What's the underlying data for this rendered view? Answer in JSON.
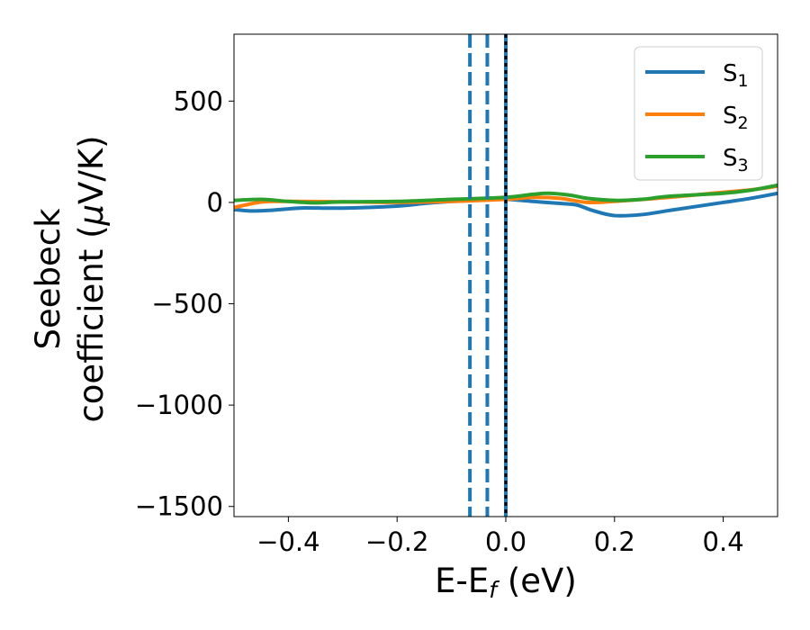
{
  "chart_data": {
    "type": "line",
    "xlabel": {
      "main": "E-E",
      "sub": "f",
      "tail": " (eV)"
    },
    "ylabel": {
      "line1": "Seebeck",
      "line2": "coefficient  (",
      "mu": "μ",
      "line2_tail": "V/K)"
    },
    "xlim": [
      -0.5,
      0.5
    ],
    "ylim": [
      -1550,
      830
    ],
    "x_ticks": [
      -0.4,
      -0.2,
      0.0,
      0.2,
      0.4
    ],
    "x_tick_labels": [
      "−0.4",
      "−0.2",
      "0.0",
      "0.2",
      "0.4"
    ],
    "y_ticks": [
      500,
      0,
      -500,
      -1000,
      -1500
    ],
    "y_tick_labels": [
      "500",
      "0",
      "−500",
      "−1000",
      "−1500"
    ],
    "grid": false,
    "legend_position": "top-right",
    "series": [
      {
        "name": "S",
        "sub": "1",
        "color": "#1f77b4",
        "x": [
          -0.5,
          -0.47,
          -0.44,
          -0.4,
          -0.37,
          -0.3,
          -0.2,
          -0.15,
          -0.1,
          -0.05,
          0.0,
          0.05,
          0.1,
          0.13,
          0.16,
          0.2,
          0.25,
          0.3,
          0.35,
          0.4,
          0.45,
          0.5
        ],
        "y": [
          -35,
          -42,
          -40,
          -32,
          -27,
          -28,
          -18,
          -5,
          5,
          12,
          15,
          5,
          -5,
          -12,
          -40,
          -65,
          -60,
          -40,
          -20,
          0,
          20,
          45
        ]
      },
      {
        "name": "S",
        "sub": "2",
        "color": "#ff7f0e",
        "x": [
          -0.5,
          -0.45,
          -0.4,
          -0.3,
          -0.2,
          -0.1,
          0.0,
          0.05,
          0.1,
          0.15,
          0.2,
          0.3,
          0.4,
          0.45,
          0.5
        ],
        "y": [
          -25,
          2,
          5,
          3,
          0,
          5,
          15,
          25,
          20,
          0,
          5,
          25,
          50,
          62,
          80
        ]
      },
      {
        "name": "S",
        "sub": "3",
        "color": "#2ca02c",
        "x": [
          -0.5,
          -0.45,
          -0.4,
          -0.35,
          -0.3,
          -0.2,
          -0.1,
          0.0,
          0.05,
          0.08,
          0.12,
          0.15,
          0.2,
          0.25,
          0.3,
          0.4,
          0.45,
          0.5
        ],
        "y": [
          10,
          15,
          5,
          -2,
          3,
          5,
          15,
          25,
          40,
          45,
          35,
          20,
          10,
          15,
          30,
          45,
          60,
          85
        ]
      }
    ],
    "vlines": [
      {
        "x": -0.066,
        "style": "dashed",
        "color": "#1f77b4"
      },
      {
        "x": -0.034,
        "style": "dashed",
        "color": "#1f77b4"
      },
      {
        "x": 0.0,
        "style": "solid",
        "color": "#1f77b4"
      },
      {
        "x": 0.0,
        "style": "dotted",
        "color": "#000000"
      }
    ]
  }
}
